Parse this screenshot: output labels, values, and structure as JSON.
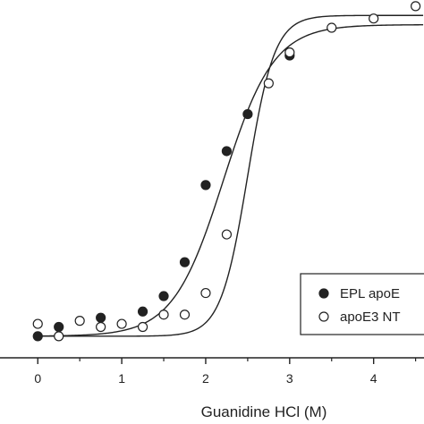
{
  "chart_data": {
    "type": "scatter",
    "title": "",
    "xlabel": "Guanidine HCl (M)",
    "ylabel": "",
    "xlim": [
      -0.45,
      4.6
    ],
    "ylim": [
      -0.07,
      1.09
    ],
    "x_ticks": [
      0,
      1,
      2,
      3,
      4
    ],
    "x_tick_labels": [
      "0",
      "1",
      "2",
      "3",
      "4"
    ],
    "grid": false,
    "legend_position": "bottom-right",
    "colors": {
      "axis": "#222222",
      "marker": "#222222",
      "fill_open": "#ffffff"
    },
    "series": [
      {
        "name": "EPL apoE",
        "marker": "filled-circle",
        "points": [
          [
            0,
            0.0
          ],
          [
            0.25,
            0.03
          ],
          [
            0.75,
            0.06
          ],
          [
            1.25,
            0.08
          ],
          [
            1.5,
            0.13
          ],
          [
            1.75,
            0.24
          ],
          [
            2.0,
            0.49
          ],
          [
            2.25,
            0.6
          ],
          [
            2.5,
            0.72
          ],
          [
            3.0,
            0.91
          ]
        ],
        "fit": {
          "midpoint": 2.21,
          "slope": 0.3,
          "bottom": 0.0,
          "top": 1.01
        }
      },
      {
        "name": "apoE3 NT",
        "marker": "open-circle",
        "points": [
          [
            0,
            0.04
          ],
          [
            0.25,
            0.0
          ],
          [
            0.5,
            0.05
          ],
          [
            0.75,
            0.03
          ],
          [
            1.0,
            0.04
          ],
          [
            1.25,
            0.03
          ],
          [
            1.5,
            0.07
          ],
          [
            1.75,
            0.07
          ],
          [
            2.0,
            0.14
          ],
          [
            2.25,
            0.33
          ],
          [
            2.75,
            0.82
          ],
          [
            3.0,
            0.92
          ],
          [
            3.5,
            1.0
          ],
          [
            4.0,
            1.03
          ],
          [
            4.5,
            1.07
          ]
        ],
        "fit": {
          "midpoint": 2.5,
          "slope": 0.16,
          "bottom": 0.0,
          "top": 1.04
        }
      }
    ]
  }
}
